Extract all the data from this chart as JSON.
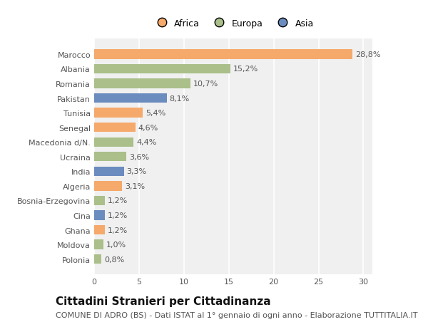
{
  "countries": [
    "Marocco",
    "Albania",
    "Romania",
    "Pakistan",
    "Tunisia",
    "Senegal",
    "Macedonia d/N.",
    "Ucraina",
    "India",
    "Algeria",
    "Bosnia-Erzegovina",
    "Cina",
    "Ghana",
    "Moldova",
    "Polonia"
  ],
  "values": [
    28.8,
    15.2,
    10.7,
    8.1,
    5.4,
    4.6,
    4.4,
    3.6,
    3.3,
    3.1,
    1.2,
    1.2,
    1.2,
    1.0,
    0.8
  ],
  "continents": [
    "Africa",
    "Europa",
    "Europa",
    "Asia",
    "Africa",
    "Africa",
    "Europa",
    "Europa",
    "Asia",
    "Africa",
    "Europa",
    "Asia",
    "Africa",
    "Europa",
    "Europa"
  ],
  "labels": [
    "28,8%",
    "15,2%",
    "10,7%",
    "8,1%",
    "5,4%",
    "4,6%",
    "4,4%",
    "3,6%",
    "3,3%",
    "3,1%",
    "1,2%",
    "1,2%",
    "1,2%",
    "1,0%",
    "0,8%"
  ],
  "colors": {
    "Africa": "#F5A96B",
    "Europa": "#AABF8A",
    "Asia": "#6B8CBF"
  },
  "xlim": [
    0,
    31
  ],
  "xticks": [
    0,
    5,
    10,
    15,
    20,
    25,
    30
  ],
  "background_color": "#ffffff",
  "plot_background": "#f0f0f0",
  "title": "Cittadini Stranieri per Cittadinanza",
  "subtitle": "COMUNE DI ADRO (BS) - Dati ISTAT al 1° gennaio di ogni anno - Elaborazione TUTTITALIA.IT",
  "title_fontsize": 11,
  "subtitle_fontsize": 8,
  "label_fontsize": 8,
  "tick_fontsize": 8,
  "legend_fontsize": 9
}
